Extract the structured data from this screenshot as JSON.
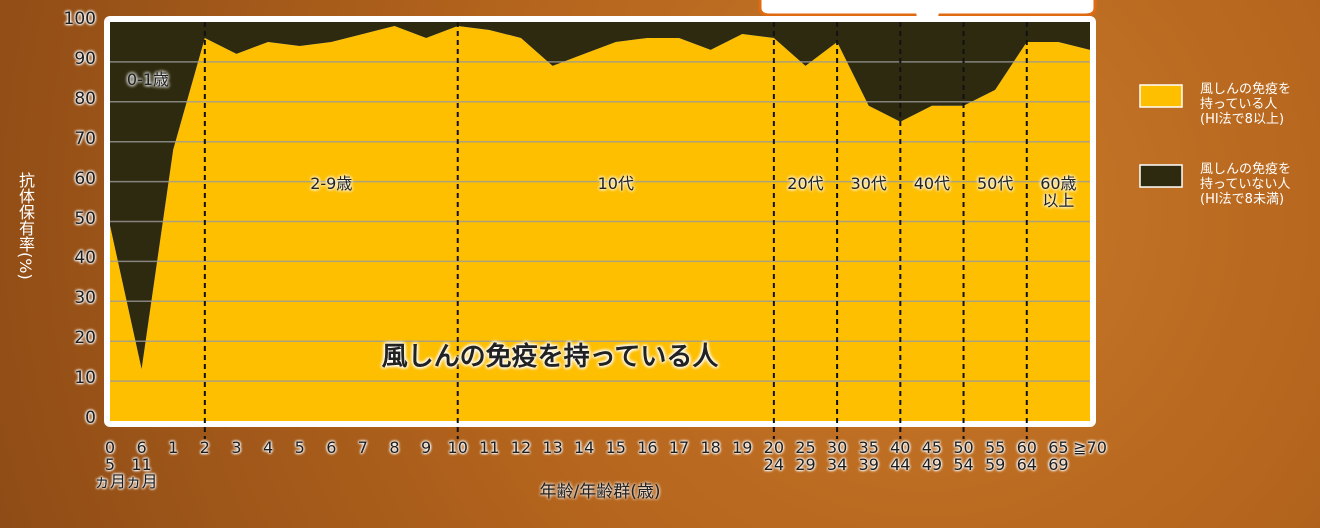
{
  "chart_data": {
    "type": "stacked-area",
    "y_label": "抗体保有率(%)",
    "x_label": "年齢/年齢群(歳)",
    "annotation": "風しんの免疫を持っている人",
    "categories": [
      "0\n5\nヵ月",
      "6\n11\nヵ月",
      "1",
      "2",
      "3",
      "4",
      "5",
      "6",
      "7",
      "8",
      "9",
      "10",
      "11",
      "12",
      "13",
      "14",
      "15",
      "16",
      "17",
      "18",
      "19",
      "20\n24",
      "25\n29",
      "30\n34",
      "35\n39",
      "40\n44",
      "45\n49",
      "50\n54",
      "55\n59",
      "60\n64",
      "65\n69",
      "≧70"
    ],
    "series": [
      {
        "name": "風しんの免疫を\n持っている人\n(HI法で8以上)",
        "color": "#fdbf00",
        "values": [
          49,
          13,
          68,
          96,
          92,
          95,
          94,
          95,
          97,
          99,
          96,
          99,
          98,
          96,
          89,
          92,
          95,
          96,
          96,
          93,
          97,
          96,
          89,
          95,
          79,
          75,
          79,
          79,
          83,
          95,
          95,
          93
        ]
      },
      {
        "name": "風しんの免疫を\n持っていない人\n(HI法で8未満)",
        "color": "#2e2a10",
        "values": [
          51,
          87,
          32,
          4,
          8,
          5,
          6,
          5,
          3,
          1,
          4,
          1,
          2,
          4,
          11,
          8,
          5,
          4,
          4,
          7,
          3,
          4,
          11,
          5,
          21,
          25,
          21,
          21,
          17,
          5,
          5,
          7
        ]
      }
    ],
    "groups": [
      {
        "label": "0-1歳",
        "from": 0
      },
      {
        "label": "2-9歳",
        "from": 3
      },
      {
        "label": "10代",
        "from": 11
      },
      {
        "label": "20代",
        "from": 21
      },
      {
        "label": "30代",
        "from": 23
      },
      {
        "label": "40代",
        "from": 25
      },
      {
        "label": "50代",
        "from": 27
      },
      {
        "label": "60歳\n以上",
        "from": 29
      }
    ],
    "ylim": [
      0,
      100
    ],
    "yticks": [
      0,
      10,
      20,
      30,
      40,
      50,
      60,
      70,
      80,
      90,
      100
    ],
    "grid": true
  }
}
